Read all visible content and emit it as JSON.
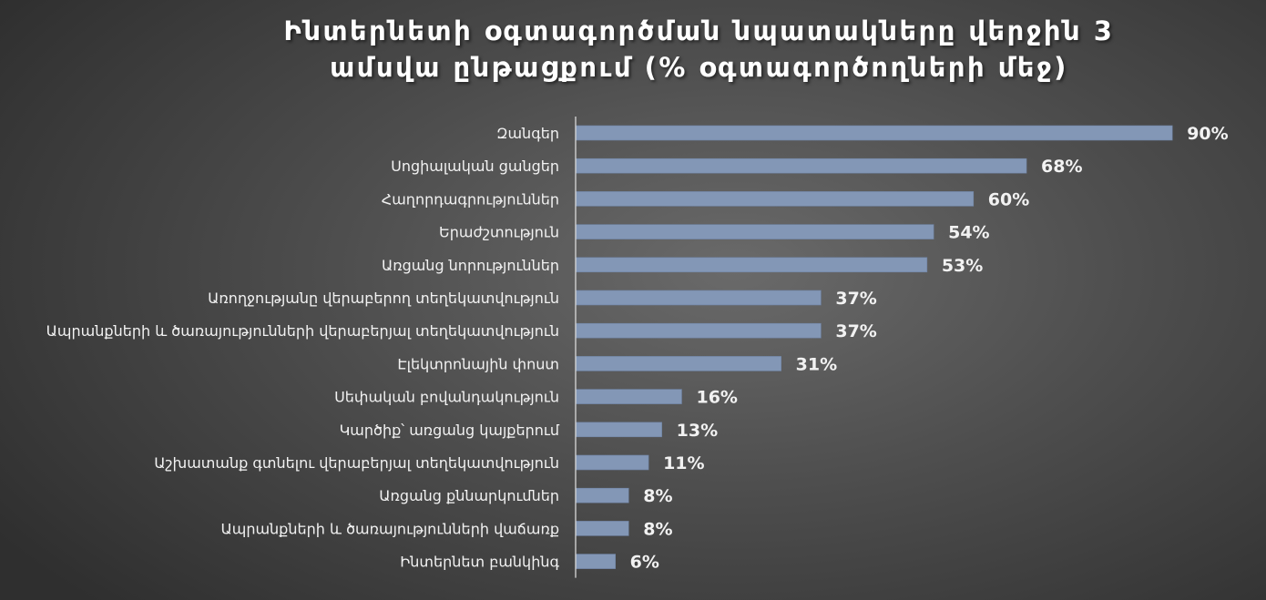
{
  "title_lines": [
    "Ինտերնետի օգտագործման նպատակները վերջին 3",
    "ամսվա ընթացքում (% օգտագործողների մեջ)"
  ],
  "colors": {
    "bar": "#8397b6",
    "bar_edge": "#6f83a3",
    "axis": "#d9d9d9",
    "text": "#f2f2f2"
  },
  "chart_data": {
    "type": "bar",
    "orientation": "horizontal",
    "categories": [
      "Զանգեր",
      "Սոցիալական ցանցեր",
      "Հաղորդագրություններ",
      "Երաժշտություն",
      "Առցանց նորություններ",
      "Առողջությանը վերաբերող տեղեկատվություն",
      "Ապրանքների և ծառայությունների վերաբերյալ տեղեկատվություն",
      "Էլեկտրոնային փոստ",
      "Սեփական բովանդակություն",
      "Կարծիք՝ առցանց կայքերում",
      "Աշխատանք գտնելու վերաբերյալ տեղեկատվություն",
      "Առցանց քննարկումներ",
      "Ապրանքների և ծառայությունների վաճառք",
      "Ինտերնետ բանկինգ"
    ],
    "values": [
      90,
      68,
      60,
      54,
      53,
      37,
      37,
      31,
      16,
      13,
      11,
      8,
      8,
      6
    ],
    "value_labels": [
      "90%",
      "68%",
      "60%",
      "54%",
      "53%",
      "37%",
      "37%",
      "31%",
      "16%",
      "13%",
      "11%",
      "8%",
      "8%",
      "6%"
    ],
    "xlim": [
      0,
      100
    ],
    "grid": false,
    "legend": "none"
  }
}
